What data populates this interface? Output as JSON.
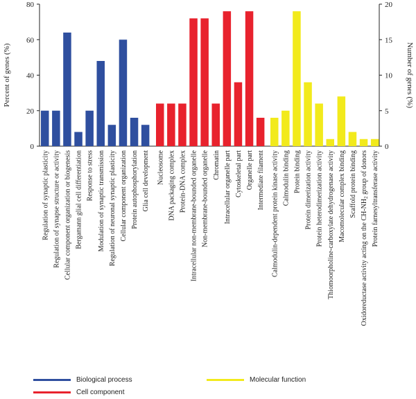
{
  "chart_data": {
    "type": "bar",
    "ylabel_left": "Percent of genes (%)",
    "ylabel_right": "Number of genes (%)",
    "ylim_left": [
      0,
      80
    ],
    "ylim_right": [
      0,
      20
    ],
    "yticks_left": [
      "0",
      "20",
      "40",
      "60",
      "80"
    ],
    "yticks_right": [
      "0",
      "5",
      "10",
      "15",
      "20"
    ],
    "grid": false,
    "series": [
      {
        "name": "Biological process",
        "color": "#2f4f9f",
        "categories": [
          "Regulation of synaptic plasticity",
          "Regulation of synapse structure or activity",
          "Cellular component organization or biogenesis",
          "Bergamann glial cell differentiation",
          "Response to stress",
          "Modulation of synaptic transmission",
          "Regulation of neuronal synaptic plasticity",
          "Cellular component organization",
          "Protein autophosphorylation",
          "Glia cell development"
        ],
        "values": [
          20,
          20,
          64,
          8,
          20,
          48,
          12,
          60,
          16,
          12
        ]
      },
      {
        "name": "Cell component",
        "color": "#e8222d",
        "categories": [
          "Nucleosome",
          "DNA packaging complex",
          "Protein-DNA complex",
          "Intracellular non-membrane-bounded organelle",
          "Non-membrane-bounded organelle",
          "Chromatin",
          "Intracellular organelle part",
          "Cytoskeletal part",
          "Organelle part",
          "Intermediate filament"
        ],
        "values": [
          24,
          24,
          24,
          72,
          72,
          24,
          76,
          36,
          76,
          16
        ]
      },
      {
        "name": "Molecular function",
        "color": "#f2ea1c",
        "categories": [
          "Calmodulin-dependent protein kinase activity",
          "Calmodulin binding",
          "Protein binding",
          "Protein dimerization activity",
          "Protein heterodimerization activity",
          "Thiomoorpholine-carboxylate dehydrogenase activity",
          "Macomolecular complex binding",
          "Scaffold protein binding",
          "Oxidoreductase activity acting on the CH-NH2 group of donors",
          "Protein farnesyltransferase activity"
        ],
        "values": [
          16,
          20,
          76,
          36,
          24,
          4,
          28,
          8,
          4,
          4
        ]
      }
    ],
    "legend": [
      {
        "label": "Biological process",
        "color": "#2f4f9f"
      },
      {
        "label": "Cell component",
        "color": "#e8222d"
      },
      {
        "label": "Molecular function",
        "color": "#f2ea1c"
      }
    ]
  }
}
